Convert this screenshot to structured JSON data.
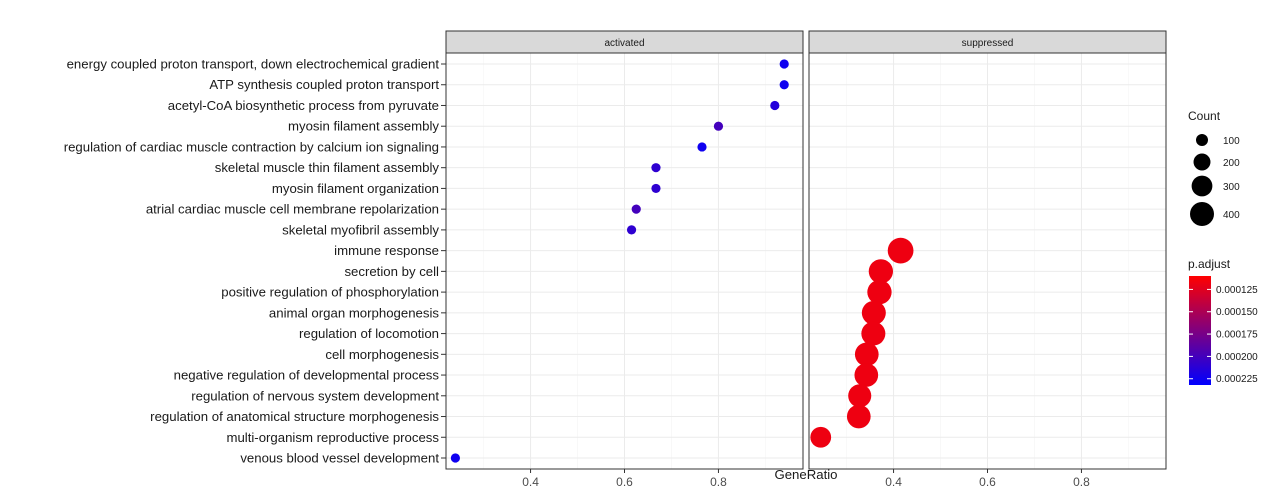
{
  "chart_data": {
    "type": "scatter",
    "subtype": "dot-plot",
    "xlabel": "GeneRatio",
    "ylabel": "",
    "xlim": [
      0.22,
      0.98
    ],
    "xticks": [
      0.4,
      0.6,
      0.8
    ],
    "xtick_labels": [
      "0.4",
      "0.6",
      "0.8"
    ],
    "grid": true,
    "panels": [
      "activated",
      "suppressed"
    ],
    "categories": [
      "energy coupled proton transport, down electrochemical gradient",
      "ATP synthesis coupled proton transport",
      "acetyl-CoA biosynthetic process from pyruvate",
      "myosin filament assembly",
      "regulation of cardiac muscle contraction by calcium ion signaling",
      "skeletal muscle thin filament assembly",
      "myosin filament organization",
      "atrial cardiac muscle cell membrane repolarization",
      "skeletal myofibril assembly",
      "immune response",
      "secretion by cell",
      "positive regulation of phosphorylation",
      "animal organ morphogenesis",
      "regulation of locomotion",
      "cell morphogenesis",
      "negative regulation of developmental process",
      "regulation of nervous system development",
      "regulation of anatomical structure morphogenesis",
      "multi-organism reproductive process",
      "venous blood vessel development"
    ],
    "series": [
      {
        "panel": "activated",
        "points": [
          {
            "category": "energy coupled proton transport, down electrochemical gradient",
            "x": 0.94,
            "count": 20,
            "p_adjust": 0.000225
          },
          {
            "category": "ATP synthesis coupled proton transport",
            "x": 0.94,
            "count": 20,
            "p_adjust": 0.000225
          },
          {
            "category": "acetyl-CoA biosynthetic process from pyruvate",
            "x": 0.92,
            "count": 15,
            "p_adjust": 0.000215
          },
          {
            "category": "myosin filament assembly",
            "x": 0.8,
            "count": 15,
            "p_adjust": 0.0002
          },
          {
            "category": "regulation of cardiac muscle contraction by calcium ion signaling",
            "x": 0.765,
            "count": 20,
            "p_adjust": 0.000225
          },
          {
            "category": "skeletal muscle thin filament assembly",
            "x": 0.667,
            "count": 15,
            "p_adjust": 0.00021
          },
          {
            "category": "myosin filament organization",
            "x": 0.667,
            "count": 15,
            "p_adjust": 0.00021
          },
          {
            "category": "atrial cardiac muscle cell membrane repolarization",
            "x": 0.625,
            "count": 10,
            "p_adjust": 0.0002
          },
          {
            "category": "skeletal myofibril assembly",
            "x": 0.615,
            "count": 15,
            "p_adjust": 0.00021
          },
          {
            "category": "venous blood vessel development",
            "x": 0.24,
            "count": 10,
            "p_adjust": 0.000225
          }
        ]
      },
      {
        "panel": "suppressed",
        "points": [
          {
            "category": "immune response",
            "x": 0.415,
            "count": 460,
            "p_adjust": 0.000118
          },
          {
            "category": "secretion by cell",
            "x": 0.373,
            "count": 410,
            "p_adjust": 0.000118
          },
          {
            "category": "positive regulation of phosphorylation",
            "x": 0.37,
            "count": 410,
            "p_adjust": 0.000118
          },
          {
            "category": "animal organ morphogenesis",
            "x": 0.358,
            "count": 400,
            "p_adjust": 0.000118
          },
          {
            "category": "regulation of locomotion",
            "x": 0.357,
            "count": 400,
            "p_adjust": 0.000118
          },
          {
            "category": "cell morphogenesis",
            "x": 0.343,
            "count": 390,
            "p_adjust": 0.000118
          },
          {
            "category": "negative regulation of developmental process",
            "x": 0.342,
            "count": 390,
            "p_adjust": 0.000118
          },
          {
            "category": "regulation of nervous system development",
            "x": 0.328,
            "count": 370,
            "p_adjust": 0.000118
          },
          {
            "category": "regulation of anatomical structure morphogenesis",
            "x": 0.326,
            "count": 390,
            "p_adjust": 0.000118
          },
          {
            "category": "multi-organism reproductive process",
            "x": 0.245,
            "count": 300,
            "p_adjust": 0.000118
          }
        ]
      }
    ],
    "size_legend": {
      "title": "Count",
      "values": [
        100,
        200,
        300,
        400
      ],
      "labels": [
        "100",
        "200",
        "300",
        "400"
      ]
    },
    "color_legend": {
      "title": "p.adjust",
      "min": 0.00011,
      "max": 0.000232,
      "ticks": [
        0.000125,
        0.00015,
        0.000175,
        0.0002,
        0.000225
      ],
      "labels": [
        "0.000125",
        "0.000150",
        "0.000175",
        "0.000200",
        "0.000225"
      ],
      "color_low": "#ff0000",
      "color_high": "#0000ff"
    },
    "colors": {
      "panel_border": "#333333",
      "strip_fill": "#d9d9d9",
      "grid_major": "#ebebeb",
      "grid_minor": "#f5f5f5"
    }
  }
}
